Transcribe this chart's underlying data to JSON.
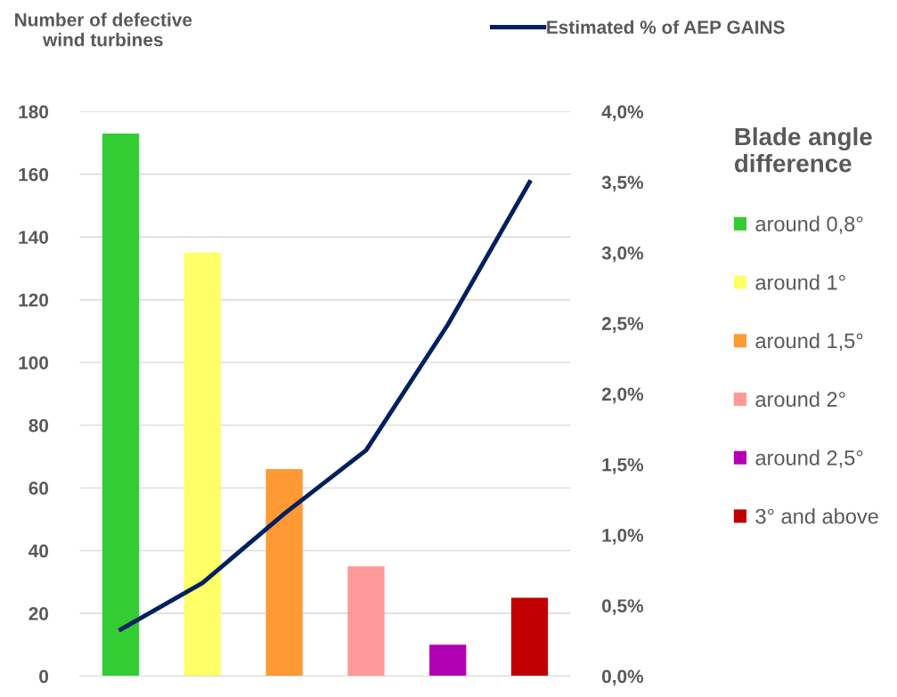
{
  "chart_data": {
    "type": "bar",
    "ylabel": "Number of defective wind turbines",
    "legend_title": "Blade angle difference",
    "categories": [
      null,
      null,
      null,
      null,
      null,
      null
    ],
    "series": [
      {
        "name": "around 0,8°",
        "color": "#33cc33",
        "values": [
          173,
          null,
          null,
          null,
          null,
          null
        ]
      },
      {
        "name": "around 1°",
        "color": "#ffff66",
        "values": [
          null,
          135,
          null,
          null,
          null,
          null
        ]
      },
      {
        "name": "around 1,5°",
        "color": "#ff9933",
        "values": [
          null,
          null,
          66,
          null,
          null,
          null
        ]
      },
      {
        "name": "around 2°",
        "color": "#ff9999",
        "values": [
          null,
          null,
          null,
          35,
          null,
          null
        ]
      },
      {
        "name": "around 2,5°",
        "color": "#b300b3",
        "values": [
          null,
          null,
          null,
          null,
          10,
          null
        ]
      },
      {
        "name": "3° and above",
        "color": "#c00000",
        "values": [
          null,
          null,
          null,
          null,
          null,
          25
        ]
      },
      {
        "type": "line",
        "axis": "y2",
        "name": "Estimated % of AEP GAINS",
        "color": "#002060",
        "values": [
          0.33,
          0.66,
          1.15,
          1.6,
          2.49,
          3.5
        ]
      }
    ],
    "ylim": [
      0,
      180
    ],
    "yticks": [
      0,
      20,
      40,
      60,
      80,
      100,
      120,
      140,
      160,
      180
    ],
    "y2lim": [
      0,
      4
    ],
    "y2ticks": [
      {
        "value": 0,
        "label": "0,0%"
      },
      {
        "value": 0.5,
        "label": "0,5%"
      },
      {
        "value": 1,
        "label": "1,0%"
      },
      {
        "value": 1.5,
        "label": "1,5%"
      },
      {
        "value": 2,
        "label": "2,0%"
      },
      {
        "value": 2.5,
        "label": "2,5%"
      },
      {
        "value": 3,
        "label": "3,0%"
      },
      {
        "value": 3.5,
        "label": "3,5%"
      },
      {
        "value": 4,
        "label": "4,0%"
      }
    ],
    "grid": "y",
    "legend": "right",
    "tick_labels": "y",
    "marker": "none",
    "line_style": "solid"
  }
}
